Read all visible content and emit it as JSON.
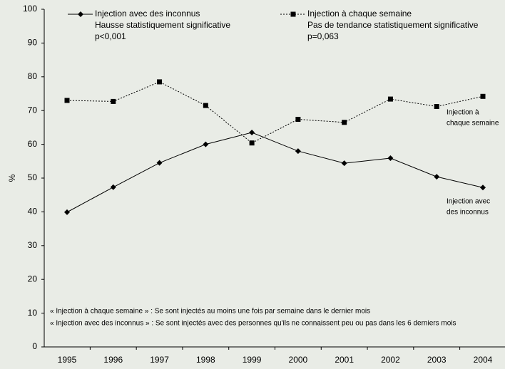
{
  "chart_data": {
    "type": "line",
    "y_label": "%",
    "categories": [
      "1995",
      "1996",
      "1997",
      "1998",
      "1999",
      "2000",
      "2001",
      "2002",
      "2003",
      "2004"
    ],
    "series": [
      {
        "name": "Injection avec des inconnus",
        "color": "#000000",
        "marker": "diamond",
        "dash": "solid",
        "legend_notes": [
          "Hausse statistiquement significative",
          "p<0,001"
        ],
        "values": [
          39.9,
          47.3,
          54.5,
          60,
          63.5,
          58,
          54.4,
          55.9,
          50.4,
          47.2
        ]
      },
      {
        "name": "Injection à chaque semaine",
        "color": "#000000",
        "marker": "square",
        "dash": "dotted",
        "legend_notes": [
          "Pas de tendance statistiquement significative",
          "p=0,063"
        ],
        "values": [
          73,
          72.7,
          78.5,
          71.5,
          60.4,
          67.4,
          66.5,
          73.4,
          71.2,
          74.2
        ]
      }
    ],
    "annotations": [
      [
        "Injection à",
        "chaque semaine"
      ],
      [
        "Injection avec",
        "des inconnus"
      ]
    ],
    "notes": [
      "« Injection à chaque semaine » : Se sont injectés au moins une fois par semaine dans le dernier mois",
      "« Injection avec des inconnus » : Se sont injectés avec des personnes qu'ils ne connaissent peu ou pas dans les 6 derniers mois"
    ],
    "ylim": [
      0,
      100
    ],
    "yticks": [
      0,
      10,
      20,
      30,
      40,
      50,
      60,
      70,
      80,
      90,
      100
    ],
    "grid": false
  }
}
